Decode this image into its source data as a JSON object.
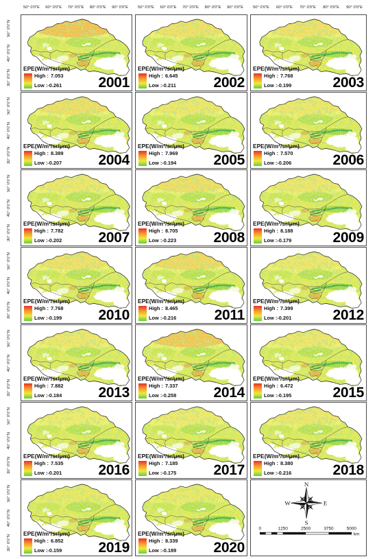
{
  "axes": {
    "lon_labels": [
      "50° 0'0\"E",
      "60° 0'0\"E",
      "70° 0'0\"E",
      "80° 0'0\"E",
      "90° 0'0\"E"
    ],
    "lat_labels": [
      "50° 0'0\"N",
      "40° 0'0\"N",
      "30° 0'0\"N"
    ]
  },
  "legend": {
    "title": "EPE(W/m²/sr/μm)",
    "high_label": "High :",
    "low_label": "Low :",
    "colors": [
      "#e8302a",
      "#f39a2a",
      "#f2e640",
      "#5fd03a"
    ]
  },
  "panels": [
    {
      "year": "2001",
      "high": "7.053",
      "low": "-0.261"
    },
    {
      "year": "2002",
      "high": "6.645",
      "low": "-0.211"
    },
    {
      "year": "2003",
      "high": "7.768",
      "low": "-0.199"
    },
    {
      "year": "2004",
      "high": "8.389",
      "low": "-0.207"
    },
    {
      "year": "2005",
      "high": "7.969",
      "low": "-0.194"
    },
    {
      "year": "2006",
      "high": "7.570",
      "low": "-0.206"
    },
    {
      "year": "2007",
      "high": "7.782",
      "low": "-0.202"
    },
    {
      "year": "2008",
      "high": "8.705",
      "low": "-0.223"
    },
    {
      "year": "2009",
      "high": "8.188",
      "low": "-0.179"
    },
    {
      "year": "2010",
      "high": "7.768",
      "low": "-0.199"
    },
    {
      "year": "2011",
      "high": "8.465",
      "low": "-0.216"
    },
    {
      "year": "2012",
      "high": "7.399",
      "low": "-0.201"
    },
    {
      "year": "2013",
      "high": "7.882",
      "low": "-0.184"
    },
    {
      "year": "2014",
      "high": "7.337",
      "low": "-0.258"
    },
    {
      "year": "2015",
      "high": "6.472",
      "low": "-0.195"
    },
    {
      "year": "2016",
      "high": "7.535",
      "low": "-0.201"
    },
    {
      "year": "2017",
      "high": "7.185",
      "low": "-0.175"
    },
    {
      "year": "2018",
      "high": "8.380",
      "low": "-0.216"
    },
    {
      "year": "2019",
      "high": "6.852",
      "low": "-0.159"
    },
    {
      "year": "2020",
      "high": "8.339",
      "low": "-0.189"
    }
  ],
  "compass": {
    "n": "N",
    "s": "S",
    "e": "E",
    "w": "W"
  },
  "scale_bar": {
    "ticks": [
      "0",
      "1250",
      "2500",
      "3750",
      "5000"
    ],
    "unit": "km"
  }
}
